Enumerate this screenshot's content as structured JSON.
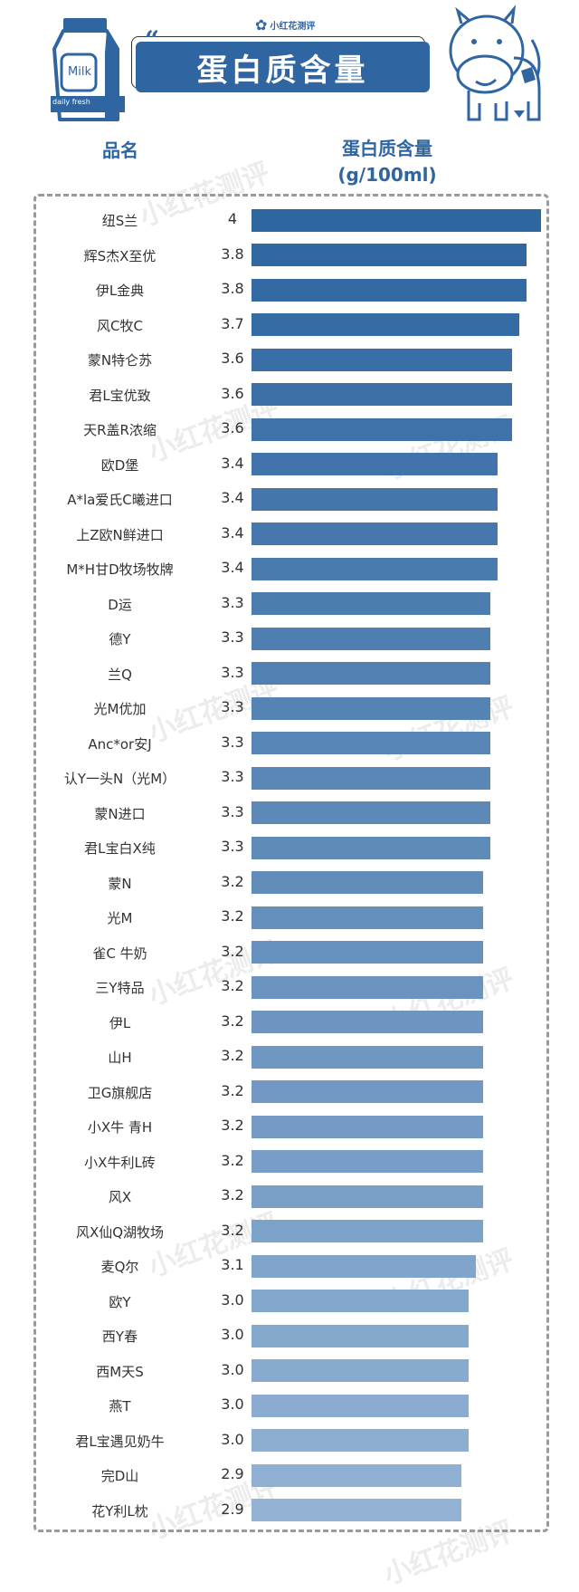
{
  "header": {
    "logo_text": "小红花测评",
    "title": "蛋白质含量",
    "milk_label": "Milk",
    "milk_sublabel": "daily fresh",
    "open_quote": "“",
    "close_quote": "”"
  },
  "watermark": "小红花测评",
  "colors": {
    "accent": "#2f65a0",
    "bar_top": "#2e66a0",
    "bar_bottom": "#93b2d4"
  },
  "chart_data": {
    "type": "bar",
    "orientation": "horizontal",
    "title": "蛋白质含量",
    "category_header": "品名",
    "value_header_line1": "蛋白质含量",
    "value_header_line2": "(g/100ml)",
    "xlim": [
      0,
      4
    ],
    "grid": false,
    "categories": [
      "纽S兰",
      "辉S杰X至优",
      "伊L金典",
      "风C牧C",
      "蒙N特仑苏",
      "君L宝优致",
      "天R盖R浓缩",
      "欧D堡",
      "A*la爱氏C曦进口",
      "上Z欧N鲜进口",
      "M*H甘D牧场牧牌",
      "D运",
      "德Y",
      "兰Q",
      "光M优加",
      "Anc*or安J",
      "认Y一头N（光M）",
      "蒙N进口",
      "君L宝白X纯",
      "蒙N",
      "光M",
      "雀C 牛奶",
      "三Y特品",
      "伊L",
      "山H",
      "卫G旗舰店",
      "小X牛 青H",
      "小X牛利L砖",
      "风X",
      "风X仙Q湖牧场",
      "麦Q尔",
      "欧Y",
      "西Y春",
      "西M天S",
      "燕T",
      "君L宝遇见奶牛",
      "完D山",
      "花Y利L枕"
    ],
    "labels": [
      "4",
      "3.8",
      "3.8",
      "3.7",
      "3.6",
      "3.6",
      "3.6",
      "3.4",
      "3.4",
      "3.4",
      "3.4",
      "3.3",
      "3.3",
      "3.3",
      "3.3",
      "3.3",
      "3.3",
      "3.3",
      "3.3",
      "3.2",
      "3.2",
      "3.2",
      "3.2",
      "3.2",
      "3.2",
      "3.2",
      "3.2",
      "3.2",
      "3.2",
      "3.2",
      "3.1",
      "3.0",
      "3.0",
      "3.0",
      "3.0",
      "3.0",
      "2.9",
      "2.9"
    ],
    "values": [
      4,
      3.8,
      3.8,
      3.7,
      3.6,
      3.6,
      3.6,
      3.4,
      3.4,
      3.4,
      3.4,
      3.3,
      3.3,
      3.3,
      3.3,
      3.3,
      3.3,
      3.3,
      3.3,
      3.2,
      3.2,
      3.2,
      3.2,
      3.2,
      3.2,
      3.2,
      3.2,
      3.2,
      3.2,
      3.2,
      3.1,
      3.0,
      3.0,
      3.0,
      3.0,
      3.0,
      2.9,
      2.9
    ]
  }
}
